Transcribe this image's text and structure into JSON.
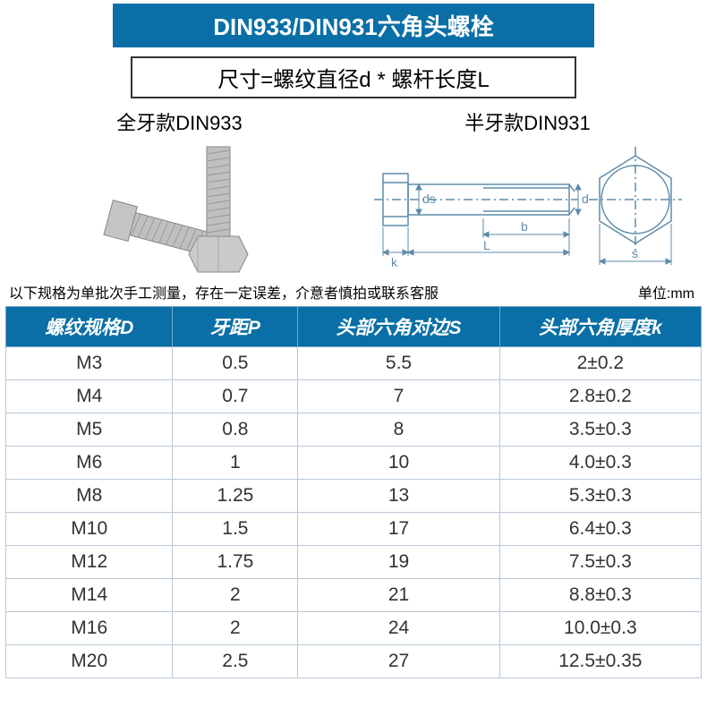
{
  "colors": {
    "header_bg": "#0a6fa6",
    "header_fg": "#ffffff",
    "grid": "#b8c8d6",
    "text": "#333333",
    "drawing_line": "#5f8ba8",
    "bolt_metal": "#b8b8b8"
  },
  "title": "DIN933/DIN931六角头螺栓",
  "size_formula": "尺寸=螺纹直径d * 螺杆长度L",
  "diagram_labels": {
    "left": "全牙款DIN933",
    "right": "半牙款DIN931"
  },
  "drawing_labels": {
    "ds": "ds",
    "d": "d",
    "b": "b",
    "L": "L",
    "k": "k",
    "s": "s"
  },
  "note_left": "以下规格为单批次手工测量，存在一定误差，介意者慎拍或联系客服",
  "note_right": "单位:mm",
  "table": {
    "columns": [
      "螺纹规格D",
      "牙距P",
      "头部六角对边S",
      "头部六角厚度k"
    ],
    "col_widths": [
      "24%",
      "18%",
      "29%",
      "29%"
    ],
    "rows": [
      [
        "M3",
        "0.5",
        "5.5",
        "2±0.2"
      ],
      [
        "M4",
        "0.7",
        "7",
        "2.8±0.2"
      ],
      [
        "M5",
        "0.8",
        "8",
        "3.5±0.3"
      ],
      [
        "M6",
        "1",
        "10",
        "4.0±0.3"
      ],
      [
        "M8",
        "1.25",
        "13",
        "5.3±0.3"
      ],
      [
        "M10",
        "1.5",
        "17",
        "6.4±0.3"
      ],
      [
        "M12",
        "1.75",
        "19",
        "7.5±0.3"
      ],
      [
        "M14",
        "2",
        "21",
        "8.8±0.3"
      ],
      [
        "M16",
        "2",
        "24",
        "10.0±0.3"
      ],
      [
        "M20",
        "2.5",
        "27",
        "12.5±0.35"
      ]
    ]
  }
}
